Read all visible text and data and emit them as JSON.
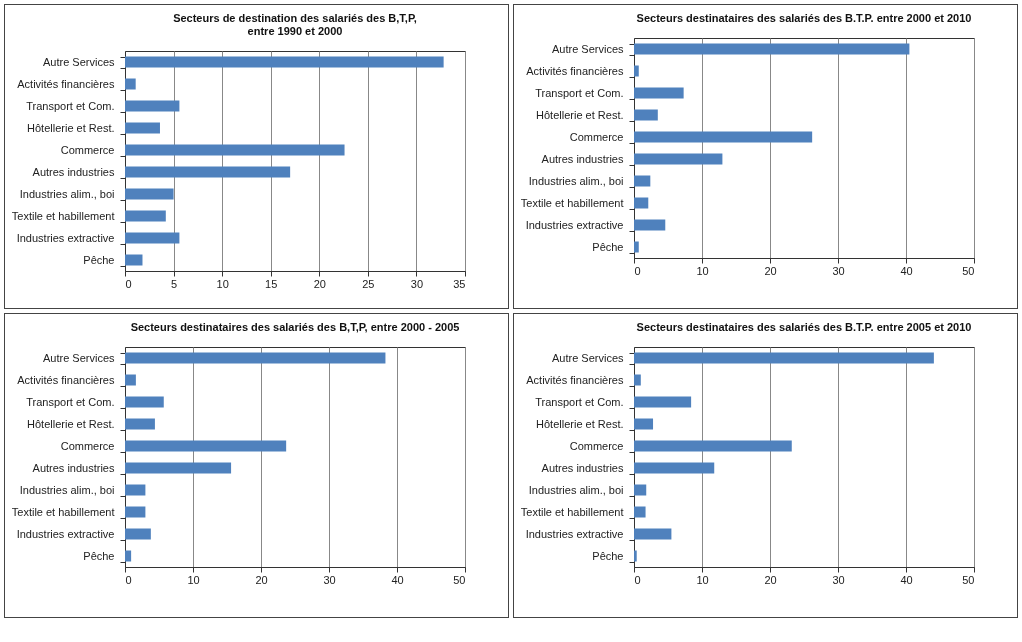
{
  "chart_data": [
    {
      "type": "bar",
      "orientation": "horizontal",
      "title": "Secteurs de destination des salariés  des B,T,P,\nentre 1990 et 2000",
      "categories": [
        "Autre Services",
        "Activités financières",
        "Transport et Com.",
        "Hôtellerie et Rest.",
        "Commerce",
        "Autres industries",
        "Industries alim., boi",
        "Textile et habillement",
        "Industries extractive",
        "Pêche"
      ],
      "values": [
        32.8,
        1.1,
        5.6,
        3.6,
        22.6,
        17.0,
        5.0,
        4.2,
        5.6,
        1.8
      ],
      "color": "#4f81bd",
      "xlim": [
        0,
        35
      ],
      "xticks": [
        0,
        5,
        10,
        15,
        20,
        25,
        30,
        35
      ],
      "grid": "x"
    },
    {
      "type": "bar",
      "orientation": "horizontal",
      "title": "Secteurs destinataires des salariés  des B.T.P. entre 2000 et 2010",
      "categories": [
        "Autre Services",
        "Activités financières",
        "Transport et Com.",
        "Hôtellerie et Rest.",
        "Commerce",
        "Autres industries",
        "Industries alim., boi",
        "Textile et habillement",
        "Industries extractive",
        "Pêche"
      ],
      "values": [
        40.5,
        0.7,
        7.3,
        3.5,
        26.2,
        13.0,
        2.4,
        2.1,
        4.6,
        0.7
      ],
      "color": "#4f81bd",
      "xlim": [
        0,
        50
      ],
      "xticks": [
        0,
        10,
        20,
        30,
        40,
        50
      ],
      "grid": "x"
    },
    {
      "type": "bar",
      "orientation": "horizontal",
      "title": "Secteurs destinataires des salariés  des B,T,P,  entre 2000 - 2005",
      "categories": [
        "Autre Services",
        "Activités financières",
        "Transport et Com.",
        "Hôtellerie et Rest.",
        "Commerce",
        "Autres industries",
        "Industries alim., boi",
        "Textile et habillement",
        "Industries extractive",
        "Pêche"
      ],
      "values": [
        38.3,
        1.6,
        5.7,
        4.4,
        23.7,
        15.6,
        3.0,
        3.0,
        3.8,
        0.9
      ],
      "color": "#4f81bd",
      "xlim": [
        0,
        50
      ],
      "xticks": [
        0,
        10,
        20,
        30,
        40,
        50
      ],
      "grid": "x"
    },
    {
      "type": "bar",
      "orientation": "horizontal",
      "title": "Secteurs  destinataires  des salariés  des B.T.P. entre 2005 et 2010",
      "categories": [
        "Autre Services",
        "Activités financières",
        "Transport et Com.",
        "Hôtellerie et Rest.",
        "Commerce",
        "Autres industries",
        "Industries alim., boi",
        "Textile et habillement",
        "Industries extractive",
        "Pêche"
      ],
      "values": [
        44.1,
        1.0,
        8.4,
        2.8,
        23.2,
        11.8,
        1.8,
        1.7,
        5.5,
        0.4
      ],
      "color": "#4f81bd",
      "xlim": [
        0,
        50
      ],
      "xticks": [
        0,
        10,
        20,
        30,
        40,
        50
      ],
      "grid": "x"
    }
  ]
}
